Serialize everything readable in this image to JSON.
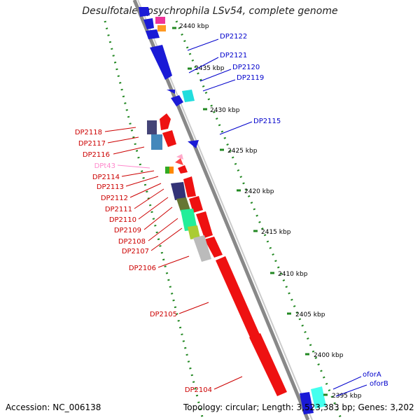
{
  "title": "Desulfotalea psychrophila LSv54, complete genome",
  "accession": "Accession: NC_006138",
  "topology": "Topology: circular; Length: 3,523,383 bp; Genes: 3,202",
  "colors": {
    "forward_text": "#0000cc",
    "reverse_text": "#cc0000",
    "rna_text": "#ff88cc",
    "backbone": "#999999",
    "scale_tick": "#228822"
  },
  "scale_labels": [
    "2440 kbp",
    "2435 kbp",
    "2430 kbp",
    "2425 kbp",
    "2420 kbp",
    "2415 kbp",
    "2410 kbp",
    "2405 kbp",
    "2400 kbp",
    "2395 kbp"
  ],
  "forward_labels": [
    "DP2122",
    "DP2121",
    "DP2120",
    "DP2119",
    "DP2115",
    "oforA",
    "oforB"
  ],
  "reverse_labels": [
    "DP2118",
    "DP2117",
    "DP2116",
    "DPt43",
    "DP2114",
    "DP2113",
    "DP2112",
    "DP2111",
    "DP2110",
    "DP2109",
    "DP2108",
    "DP2107",
    "DP2106",
    "DP2105",
    "DP2104"
  ]
}
